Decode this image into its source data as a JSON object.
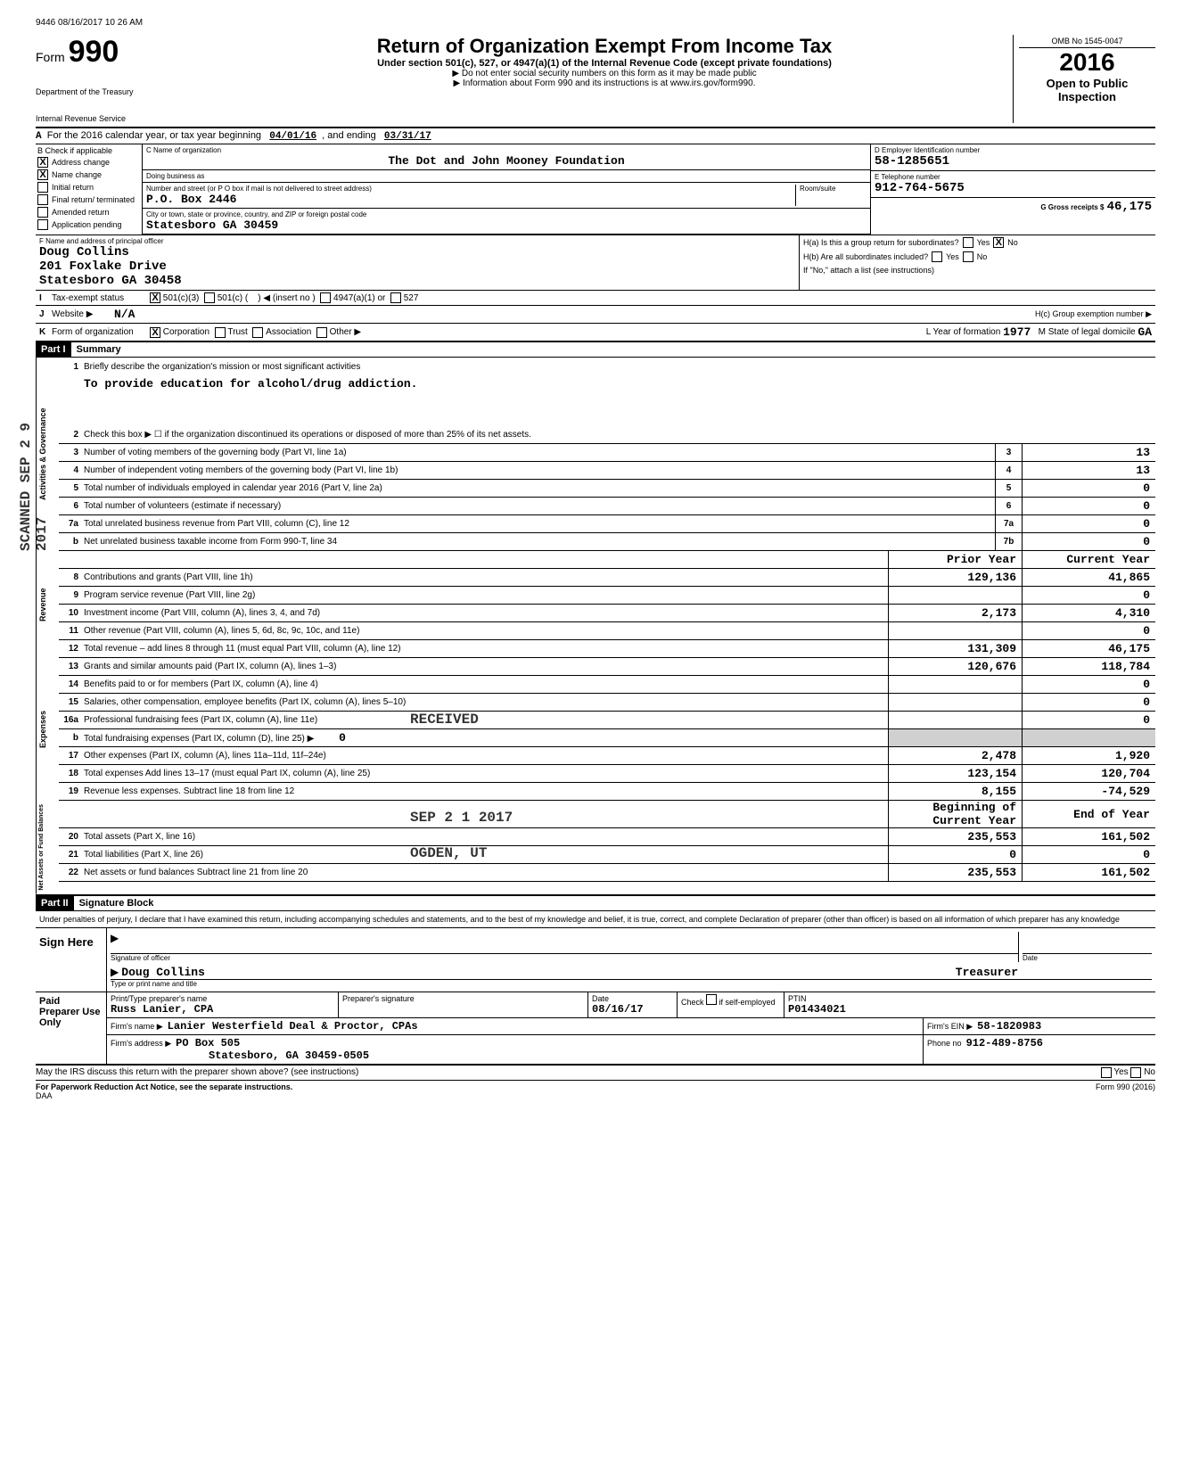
{
  "timestamp": "9446 08/16/2017 10 26 AM",
  "header": {
    "form_label": "Form",
    "form_number": "990",
    "dept1": "Department of the Treasury",
    "dept2": "Internal Revenue Service",
    "title": "Return of Organization Exempt From Income Tax",
    "subtitle": "Under section 501(c), 527, or 4947(a)(1) of the Internal Revenue Code (except private foundations)",
    "note1": "▶ Do not enter social security numbers on this form as it may be made public",
    "note2": "▶ Information about Form 990 and its instructions is at www.irs.gov/form990.",
    "omb": "OMB No 1545-0047",
    "year": "2016",
    "open1": "Open to Public",
    "open2": "Inspection"
  },
  "row_a": {
    "prefix": "A",
    "text": "For the 2016 calendar year, or tax year beginning",
    "begin": "04/01/16",
    "mid": ", and ending",
    "end": "03/31/17"
  },
  "col_b": {
    "header": "B  Check if applicable",
    "items": [
      {
        "checked": "X",
        "label": "Address change"
      },
      {
        "checked": "X",
        "label": "Name change"
      },
      {
        "checked": "",
        "label": "Initial return"
      },
      {
        "checked": "",
        "label": "Final return/ terminated"
      },
      {
        "checked": "",
        "label": "Amended return"
      },
      {
        "checked": "",
        "label": "Application pending"
      }
    ]
  },
  "col_c": {
    "name_label": "C Name of organization",
    "name": "The Dot and John Mooney Foundation",
    "dba_label": "Doing business as",
    "dba": "",
    "street_label": "Number and street (or P O box if mail is not delivered to street address)",
    "street": "P.O. Box 2446",
    "room_label": "Room/suite",
    "city_label": "City or town, state or province, country, and ZIP or foreign postal code",
    "city": "Statesboro                GA 30459"
  },
  "col_de": {
    "d_label": "D Employer Identification number",
    "d_val": "58-1285651",
    "e_label": "E Telephone number",
    "e_val": "912-764-5675",
    "g_label": "G Gross receipts $",
    "g_val": "46,175"
  },
  "section_f": {
    "label": "F Name and address of principal officer",
    "name": "Doug Collins",
    "street": "201 Foxlake Drive",
    "city": "Statesboro            GA 30458",
    "ha": "H(a) Is this a group return for subordinates?",
    "ha_yes": "Yes",
    "ha_no": "No",
    "ha_checked": "X",
    "hb": "H(b) Are all subordinates included?",
    "hb_yes": "Yes",
    "hb_no": "No",
    "hb_note": "If \"No,\" attach a list (see instructions)"
  },
  "row_i": {
    "lbl": "I",
    "text": "Tax-exempt status",
    "checked": "X",
    "opt1": "501(c)(3)",
    "opt2": "501(c)",
    "insert": "◀ (insert no )",
    "opt3": "4947(a)(1) or",
    "opt4": "527"
  },
  "row_j": {
    "lbl": "J",
    "text": "Website ▶",
    "val": "N/A",
    "hc": "H(c) Group exemption number ▶"
  },
  "row_k": {
    "lbl": "K",
    "text": "Form of organization",
    "checked": "X",
    "opt1": "Corporation",
    "opt2": "Trust",
    "opt3": "Association",
    "opt4": "Other ▶",
    "l_text": "L   Year of formation",
    "l_val": "1977",
    "m_text": "M   State of legal domicile",
    "m_val": "GA"
  },
  "part1": {
    "header": "Part I",
    "title": "Summary",
    "vert1": "Activities & Governance",
    "vert2": "Revenue",
    "vert3": "Expenses",
    "vert4": "Net Assets or Fund Balances",
    "line1_text": "Briefly describe the organization's mission or most significant activities",
    "mission": "To provide education for alcohol/drug addiction.",
    "line2_text": "Check this box ▶ ☐  if the organization discontinued its operations or disposed of more than 25% of its net assets.",
    "lines_single": [
      {
        "n": "3",
        "txt": "Number of voting members of the governing body (Part VI, line 1a)",
        "box": "3",
        "val": "13"
      },
      {
        "n": "4",
        "txt": "Number of independent voting members of the governing body (Part VI, line 1b)",
        "box": "4",
        "val": "13"
      },
      {
        "n": "5",
        "txt": "Total number of individuals employed in calendar year 2016 (Part V, line 2a)",
        "box": "5",
        "val": "0"
      },
      {
        "n": "6",
        "txt": "Total number of volunteers (estimate if necessary)",
        "box": "6",
        "val": "0"
      },
      {
        "n": "7a",
        "txt": "Total unrelated business revenue from Part VIII, column (C), line 12",
        "box": "7a",
        "val": "0"
      },
      {
        "n": "b",
        "txt": "Net unrelated business taxable income from Form 990-T, line 34",
        "box": "7b",
        "val": "0"
      }
    ],
    "col_prior": "Prior Year",
    "col_current": "Current Year",
    "lines_double": [
      {
        "n": "8",
        "txt": "Contributions and grants (Part VIII, line 1h)",
        "prior": "129,136",
        "curr": "41,865"
      },
      {
        "n": "9",
        "txt": "Program service revenue (Part VIII, line 2g)",
        "prior": "",
        "curr": "0"
      },
      {
        "n": "10",
        "txt": "Investment income (Part VIII, column (A), lines 3, 4, and 7d)",
        "prior": "2,173",
        "curr": "4,310"
      },
      {
        "n": "11",
        "txt": "Other revenue (Part VIII, column (A), lines 5, 6d, 8c, 9c, 10c, and 11e)",
        "prior": "",
        "curr": "0"
      },
      {
        "n": "12",
        "txt": "Total revenue – add lines 8 through 11 (must equal Part VIII, column (A), line 12)",
        "prior": "131,309",
        "curr": "46,175"
      },
      {
        "n": "13",
        "txt": "Grants and similar amounts paid (Part IX, column (A), lines 1–3)",
        "prior": "120,676",
        "curr": "118,784"
      },
      {
        "n": "14",
        "txt": "Benefits paid to or for members (Part IX, column (A), line 4)",
        "prior": "",
        "curr": "0"
      },
      {
        "n": "15",
        "txt": "Salaries, other compensation, employee benefits (Part IX, column (A), lines 5–10)",
        "prior": "",
        "curr": "0"
      },
      {
        "n": "16a",
        "txt": "Professional fundraising fees (Part IX, column (A), line 11e)",
        "prior": "",
        "curr": "0"
      }
    ],
    "line16b": {
      "n": "b",
      "txt": "Total fundraising expenses (Part IX, column (D), line 25) ▶",
      "val": "0"
    },
    "lines_double2": [
      {
        "n": "17",
        "txt": "Other expenses (Part IX, column (A), lines 11a–11d, 11f–24e)",
        "prior": "2,478",
        "curr": "1,920"
      },
      {
        "n": "18",
        "txt": "Total expenses  Add lines 13–17 (must equal Part IX, column (A), line 25)",
        "prior": "123,154",
        "curr": "120,704"
      },
      {
        "n": "19",
        "txt": "Revenue less expenses. Subtract line 18 from line 12",
        "prior": "8,155",
        "curr": "-74,529"
      }
    ],
    "col_begin": "Beginning of Current Year",
    "col_end": "End of Year",
    "lines_net": [
      {
        "n": "20",
        "txt": "Total assets (Part X, line 16)",
        "prior": "235,553",
        "curr": "161,502"
      },
      {
        "n": "21",
        "txt": "Total liabilities (Part X, line 26)",
        "prior": "0",
        "curr": "0"
      },
      {
        "n": "22",
        "txt": "Net assets or fund balances  Subtract line 21 from line 20",
        "prior": "235,553",
        "curr": "161,502"
      }
    ]
  },
  "part2": {
    "header": "Part II",
    "title": "Signature Block",
    "perjury": "Under penalties of perjury, I declare that I have examined this return, including accompanying schedules and statements, and to the best of my knowledge and belief, it is true, correct, and complete  Declaration of preparer (other than officer) is based on all information of which preparer has any knowledge",
    "sign_here": "Sign Here",
    "sig_label": "Signature of officer",
    "date_label": "Date",
    "name": "Doug Collins",
    "title_val": "Treasurer",
    "name_label": "Type or print name and title"
  },
  "preparer": {
    "left": "Paid Preparer Use Only",
    "h1": "Print/Type preparer's name",
    "v1": "Russ Lanier, CPA",
    "h2": "Preparer's signature",
    "h3": "Date",
    "v3": "08/16/17",
    "h4": "Check",
    "h4b": "if self-employed",
    "h5": "PTIN",
    "v5": "P01434021",
    "firm_label": "Firm's name    ▶",
    "firm": "Lanier Westerfield Deal & Proctor, CPAs",
    "ein_label": "Firm's EIN ▶",
    "ein": "58-1820983",
    "addr_label": "Firm's address   ▶",
    "addr1": "PO Box 505",
    "addr2": "Statesboro, GA   30459-0505",
    "phone_label": "Phone no",
    "phone": "912-489-8756"
  },
  "footer": {
    "irs": "May the IRS discuss this return with the preparer shown above? (see instructions)",
    "yes": "Yes",
    "no": "No",
    "pra": "For Paperwork Reduction Act Notice, see the separate instructions.",
    "daa": "DAA",
    "form": "Form 990 (2016)"
  },
  "stamps": {
    "received": "RECEIVED",
    "date": "SEP 2 1 2017",
    "ogden": "OGDEN, UT",
    "scanned": "SCANNED SEP 2 9 2017"
  }
}
